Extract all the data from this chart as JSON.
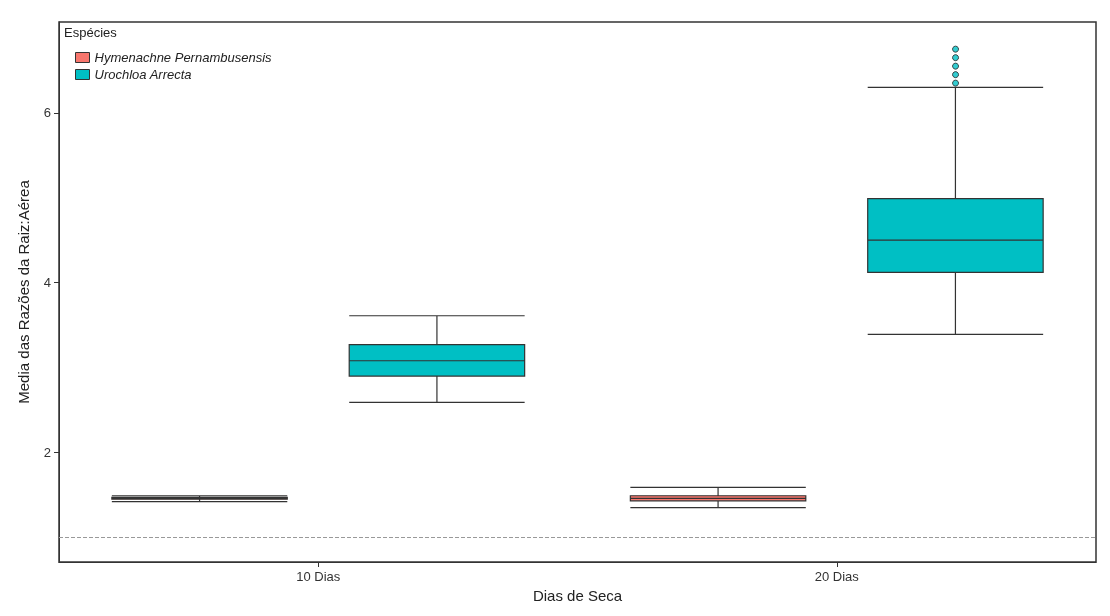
{
  "chart_data": {
    "type": "box",
    "xlabel": "Dias de Seca",
    "ylabel": "Media das Razões da Raiz:Aérea",
    "legend_title": "Espécies",
    "legend": "top left",
    "grid": false,
    "categories": [
      "10 Dias",
      "20 Dias"
    ],
    "series": [
      {
        "name": "Hymenachne Pernambusensis",
        "color": "#f8766d",
        "boxes": [
          {
            "low": 1.42,
            "q1": 1.45,
            "median": 1.46,
            "q3": 1.47,
            "high": 1.49
          },
          {
            "low": 1.35,
            "q1": 1.43,
            "median": 1.46,
            "q3": 1.49,
            "high": 1.59
          }
        ]
      },
      {
        "name": "Urochloa Arrecta",
        "color": "#00bfc4",
        "boxes": [
          {
            "low": 2.59,
            "q1": 2.9,
            "median": 3.08,
            "q3": 3.27,
            "high": 3.61
          },
          {
            "low": 3.39,
            "q1": 4.12,
            "median": 4.5,
            "q3": 4.99,
            "high": 6.3,
            "outliers": [
              6.35,
              6.45,
              6.55,
              6.65,
              6.75
            ]
          }
        ]
      }
    ],
    "ylim": [
      0.71,
      7.07
    ],
    "yticks": [
      2,
      4,
      6
    ],
    "ref_lines": [
      {
        "axis": "y",
        "value": 1,
        "line_style": "dashed",
        "color": "#999999"
      }
    ]
  }
}
